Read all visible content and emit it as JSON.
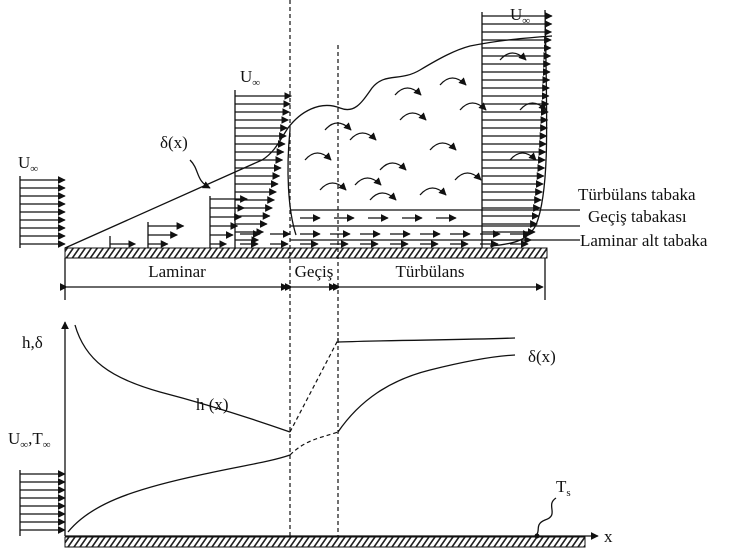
{
  "top": {
    "freestream_labels": [
      {
        "base": "U",
        "sub": "∞"
      },
      {
        "base": "U",
        "sub": "∞"
      },
      {
        "base": "U",
        "sub": "∞"
      }
    ],
    "delta_label": "δ(x)",
    "layers": [
      "Türbülans tabaka",
      "Geçiş tabakası",
      "Laminar alt tabaka"
    ],
    "regions": [
      "Laminar",
      "Geçiş",
      "Türbülans"
    ]
  },
  "bottom": {
    "axis_label": "h,δ",
    "h_label": "h (x)",
    "delta_label": "δ(x)",
    "inlet_label": {
      "u": "U",
      "u_sub": "∞",
      "sep": ",",
      "t": "T",
      "t_sub": "∞"
    },
    "wall_temp": {
      "base": "T",
      "sub": "s"
    },
    "x_label": "x"
  }
}
